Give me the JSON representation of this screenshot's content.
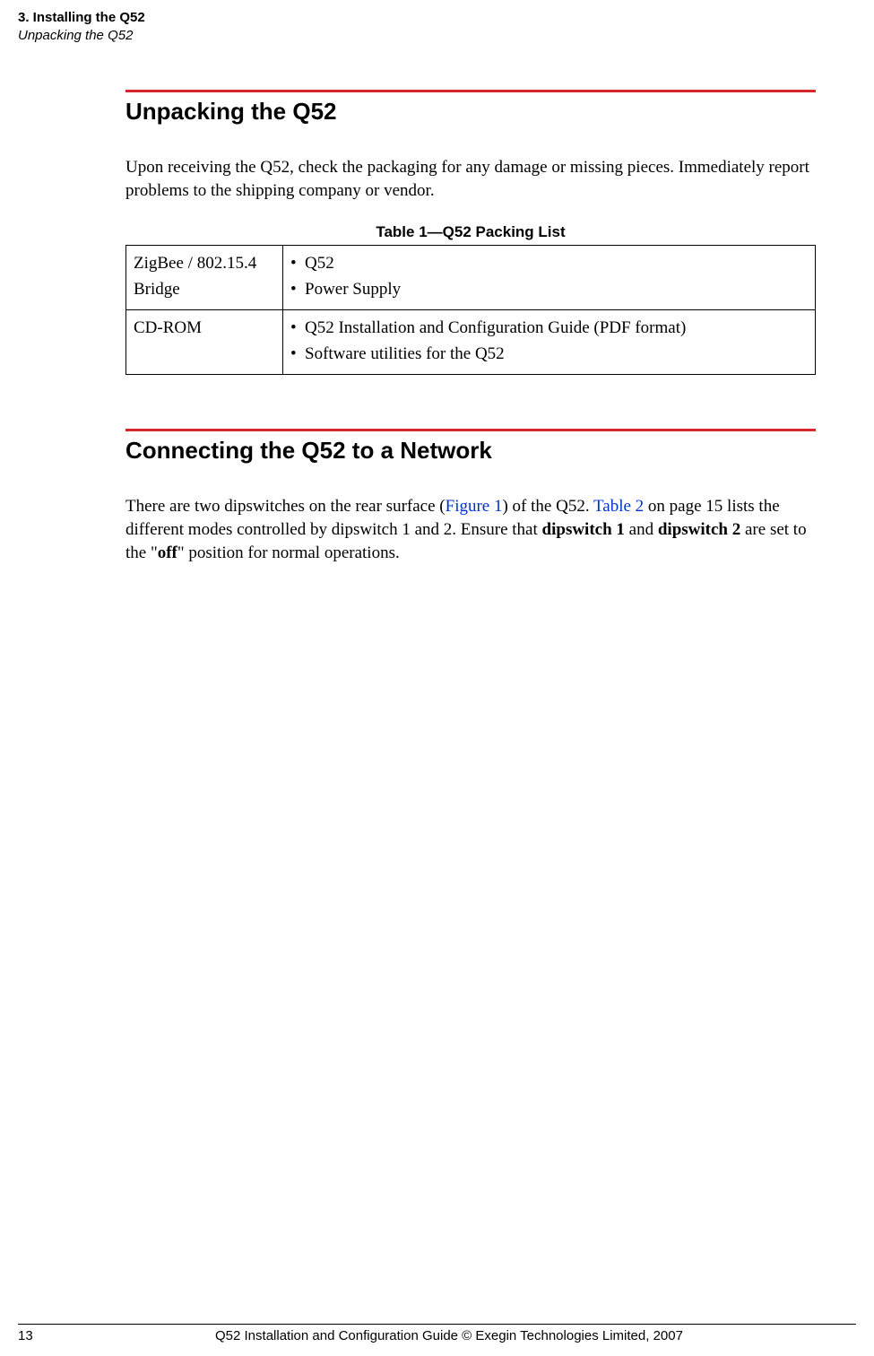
{
  "header": {
    "line1": "3. Installing the Q52",
    "line2": "Unpacking the Q52"
  },
  "section1": {
    "title": "Unpacking the Q52",
    "para": "Upon receiving the Q52, check the packaging for any damage or missing pieces. Immediately report problems to the shipping company or vendor."
  },
  "table": {
    "caption": "Table 1—Q52 Packing List",
    "rows": [
      {
        "c1": "ZigBee / 802.15.4 Bridge",
        "items": [
          "Q52",
          "Power Supply"
        ]
      },
      {
        "c1": "CD-ROM",
        "items": [
          "Q52 Installation and Configuration Guide (PDF format)",
          "Software utilities for the Q52"
        ]
      }
    ]
  },
  "section2": {
    "title": "Connecting the Q52 to a Network",
    "para_pre": "There are two dipswitches on the rear surface (",
    "link1": "Figure 1",
    "para_mid1": ") of the Q52. ",
    "link2": "Table 2",
    "para_mid2": " on page 15 lists the different modes controlled by dipswitch 1 and 2. Ensure that ",
    "bold1": "dipswitch 1",
    "para_mid3": " and ",
    "bold2": "dipswitch 2",
    "para_mid4": " are set to the \"",
    "bold3": "off",
    "para_end": "\" position for normal operations."
  },
  "footer": {
    "page": "13",
    "text": "Q52 Installation and Configuration Guide  © Exegin Technologies Limited, 2007"
  },
  "colors": {
    "rule": "#d8272b",
    "link": "#0033cc",
    "text": "#000000",
    "bg": "#ffffff"
  }
}
